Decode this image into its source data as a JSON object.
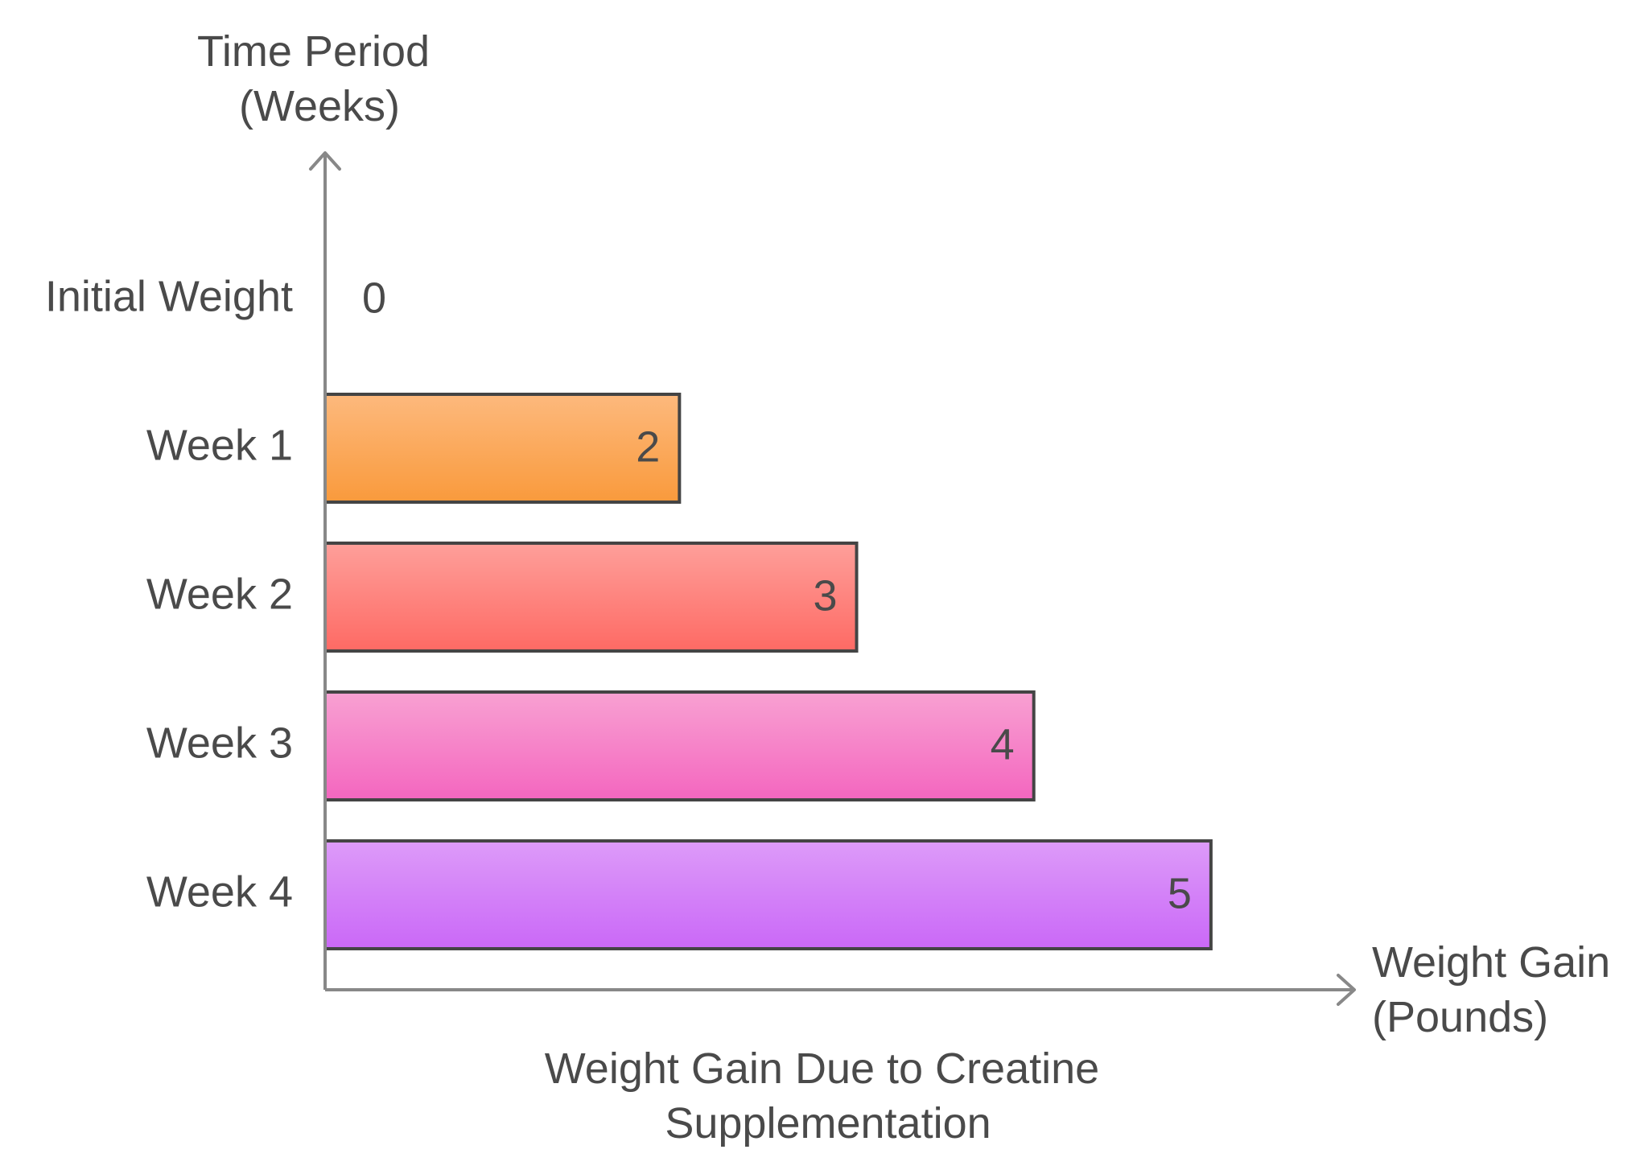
{
  "chart_data": {
    "type": "bar",
    "orientation": "horizontal",
    "title": [
      "Weight Gain Due to Creatine",
      "Supplementation"
    ],
    "ylabel": [
      "Time Period",
      "(Weeks)"
    ],
    "xlabel": [
      "Weight Gain",
      "(Pounds)"
    ],
    "categories": [
      "Initial Weight",
      "Week 1",
      "Week 2",
      "Week 3",
      "Week 4"
    ],
    "values": [
      0,
      2,
      3,
      4,
      5
    ],
    "xlim": [
      0,
      5.8
    ],
    "grid": false,
    "legend": "none",
    "colors": [
      [
        "#ffffff",
        "#ffffff"
      ],
      [
        "#fdb97d",
        "#f99a3c"
      ],
      [
        "#fe9f9a",
        "#fe6a64"
      ],
      [
        "#f8a1d2",
        "#f466bf"
      ],
      [
        "#dd9bf9",
        "#ca68f7"
      ]
    ],
    "axis_color": "#888888",
    "bar_stroke": "#444444",
    "text_color": "#4a4a4a"
  }
}
